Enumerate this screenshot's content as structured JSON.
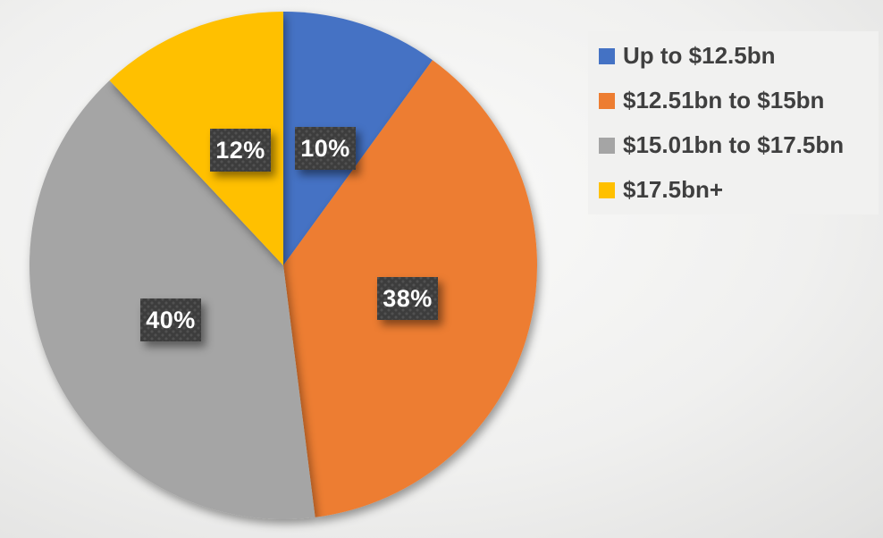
{
  "chart_data": {
    "type": "pie",
    "labels": [
      "Up to $12.5bn",
      "$12.51bn to $15bn",
      "$15.01bn to $17.5bn",
      "$17.5bn+"
    ],
    "values": [
      10,
      38,
      40,
      12
    ],
    "data_labels": [
      "10%",
      "38%",
      "40%",
      "12%"
    ],
    "colors": [
      "#4472C4",
      "#ED7D31",
      "#A5A5A5",
      "#FFC000"
    ],
    "start_angle_deg": 0,
    "direction": "clockwise",
    "legend_position": "upper-right",
    "data_label_style": {
      "background": "#3d3d3d",
      "text_color": "#ffffff",
      "pattern": "dotted"
    },
    "background": {
      "type": "radial-gradient",
      "center_color": "#fbfbfa",
      "edge_color": "#c5c5c4"
    }
  },
  "legend": {
    "background": "#f1f1f0",
    "text_color": "#3f3f3f",
    "items": [
      {
        "label": "Up to $12.5bn",
        "color": "#4472C4"
      },
      {
        "label": "$12.51bn to $15bn",
        "color": "#ED7D31"
      },
      {
        "label": "$15.01bn to $17.5bn",
        "color": "#A5A5A5"
      },
      {
        "label": "$17.5bn+",
        "color": "#FFC000"
      }
    ]
  }
}
